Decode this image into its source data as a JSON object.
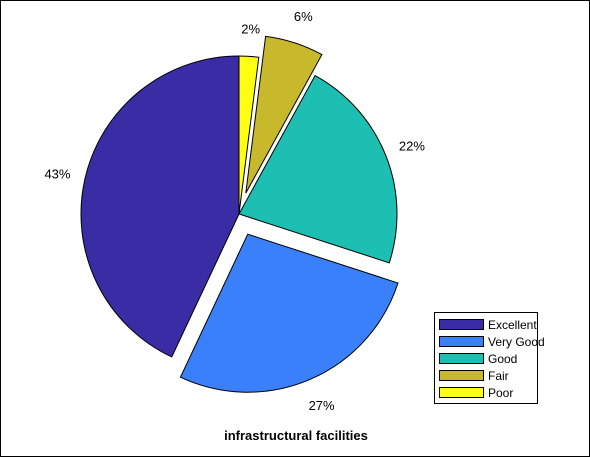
{
  "chart_data": {
    "type": "pie",
    "title": "infrastructural facilities",
    "slices": [
      {
        "label": "Excellent",
        "value": 43,
        "pct_label": "43%",
        "color": "#3a2ca4",
        "exploded": false
      },
      {
        "label": "Very Good",
        "value": 27,
        "pct_label": "27%",
        "color": "#3a80fa",
        "exploded": true
      },
      {
        "label": "Good",
        "value": 22,
        "pct_label": "22%",
        "color": "#1cbfb1",
        "exploded": false
      },
      {
        "label": "Fair",
        "value": 6,
        "pct_label": "6%",
        "color": "#c8b92c",
        "exploded": true
      },
      {
        "label": "Poor",
        "value": 2,
        "pct_label": "2%",
        "color": "#ffff14",
        "exploded": false
      }
    ],
    "legend": {
      "entries": [
        "Excellent",
        "Very Good",
        "Good",
        "Fair",
        "Poor"
      ],
      "position": "bottom-right"
    }
  }
}
